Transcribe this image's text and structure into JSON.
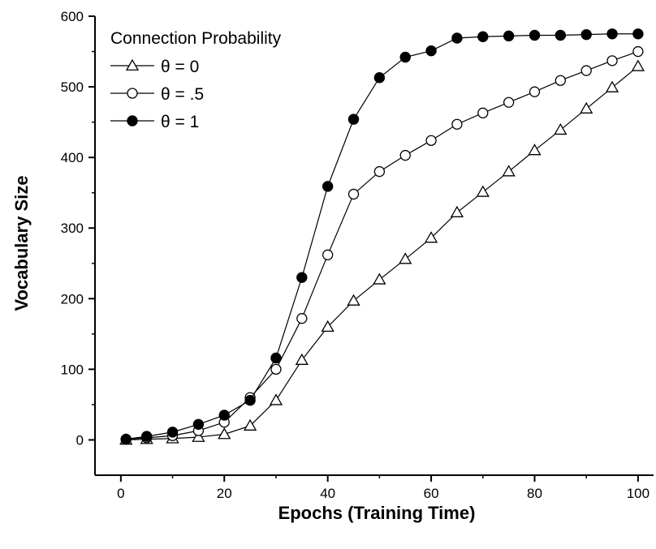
{
  "chart_data": {
    "type": "line",
    "title": "",
    "xlabel": "Epochs (Training Time)",
    "ylabel": "Vocabulary Size",
    "xlim": [
      -5,
      103
    ],
    "ylim": [
      -50,
      600
    ],
    "xticks": [
      0,
      20,
      40,
      60,
      80,
      100
    ],
    "yticks": [
      0,
      100,
      200,
      300,
      400,
      500,
      600
    ],
    "grid": false,
    "legend": {
      "title": "Connection Probability",
      "placement": "top-left"
    },
    "x": [
      1,
      5,
      10,
      15,
      20,
      25,
      30,
      35,
      40,
      45,
      50,
      55,
      60,
      65,
      70,
      75,
      80,
      85,
      90,
      95,
      100
    ],
    "series": [
      {
        "name": "θ = 0",
        "marker": "open-triangle",
        "values": [
          0,
          1,
          2,
          4,
          8,
          20,
          56,
          113,
          160,
          197,
          227,
          256,
          286,
          322,
          351,
          380,
          410,
          439,
          469,
          499,
          529
        ]
      },
      {
        "name": "θ = .5",
        "marker": "open-circle",
        "values": [
          1,
          3,
          6,
          13,
          25,
          60,
          100,
          172,
          262,
          348,
          380,
          403,
          424,
          447,
          463,
          478,
          493,
          509,
          523,
          537,
          550
        ]
      },
      {
        "name": "θ = 1",
        "marker": "filled-circle",
        "values": [
          1,
          5,
          11,
          22,
          35,
          56,
          116,
          230,
          359,
          454,
          513,
          542,
          551,
          569,
          571,
          572,
          573,
          573,
          574,
          575,
          575
        ]
      }
    ]
  }
}
